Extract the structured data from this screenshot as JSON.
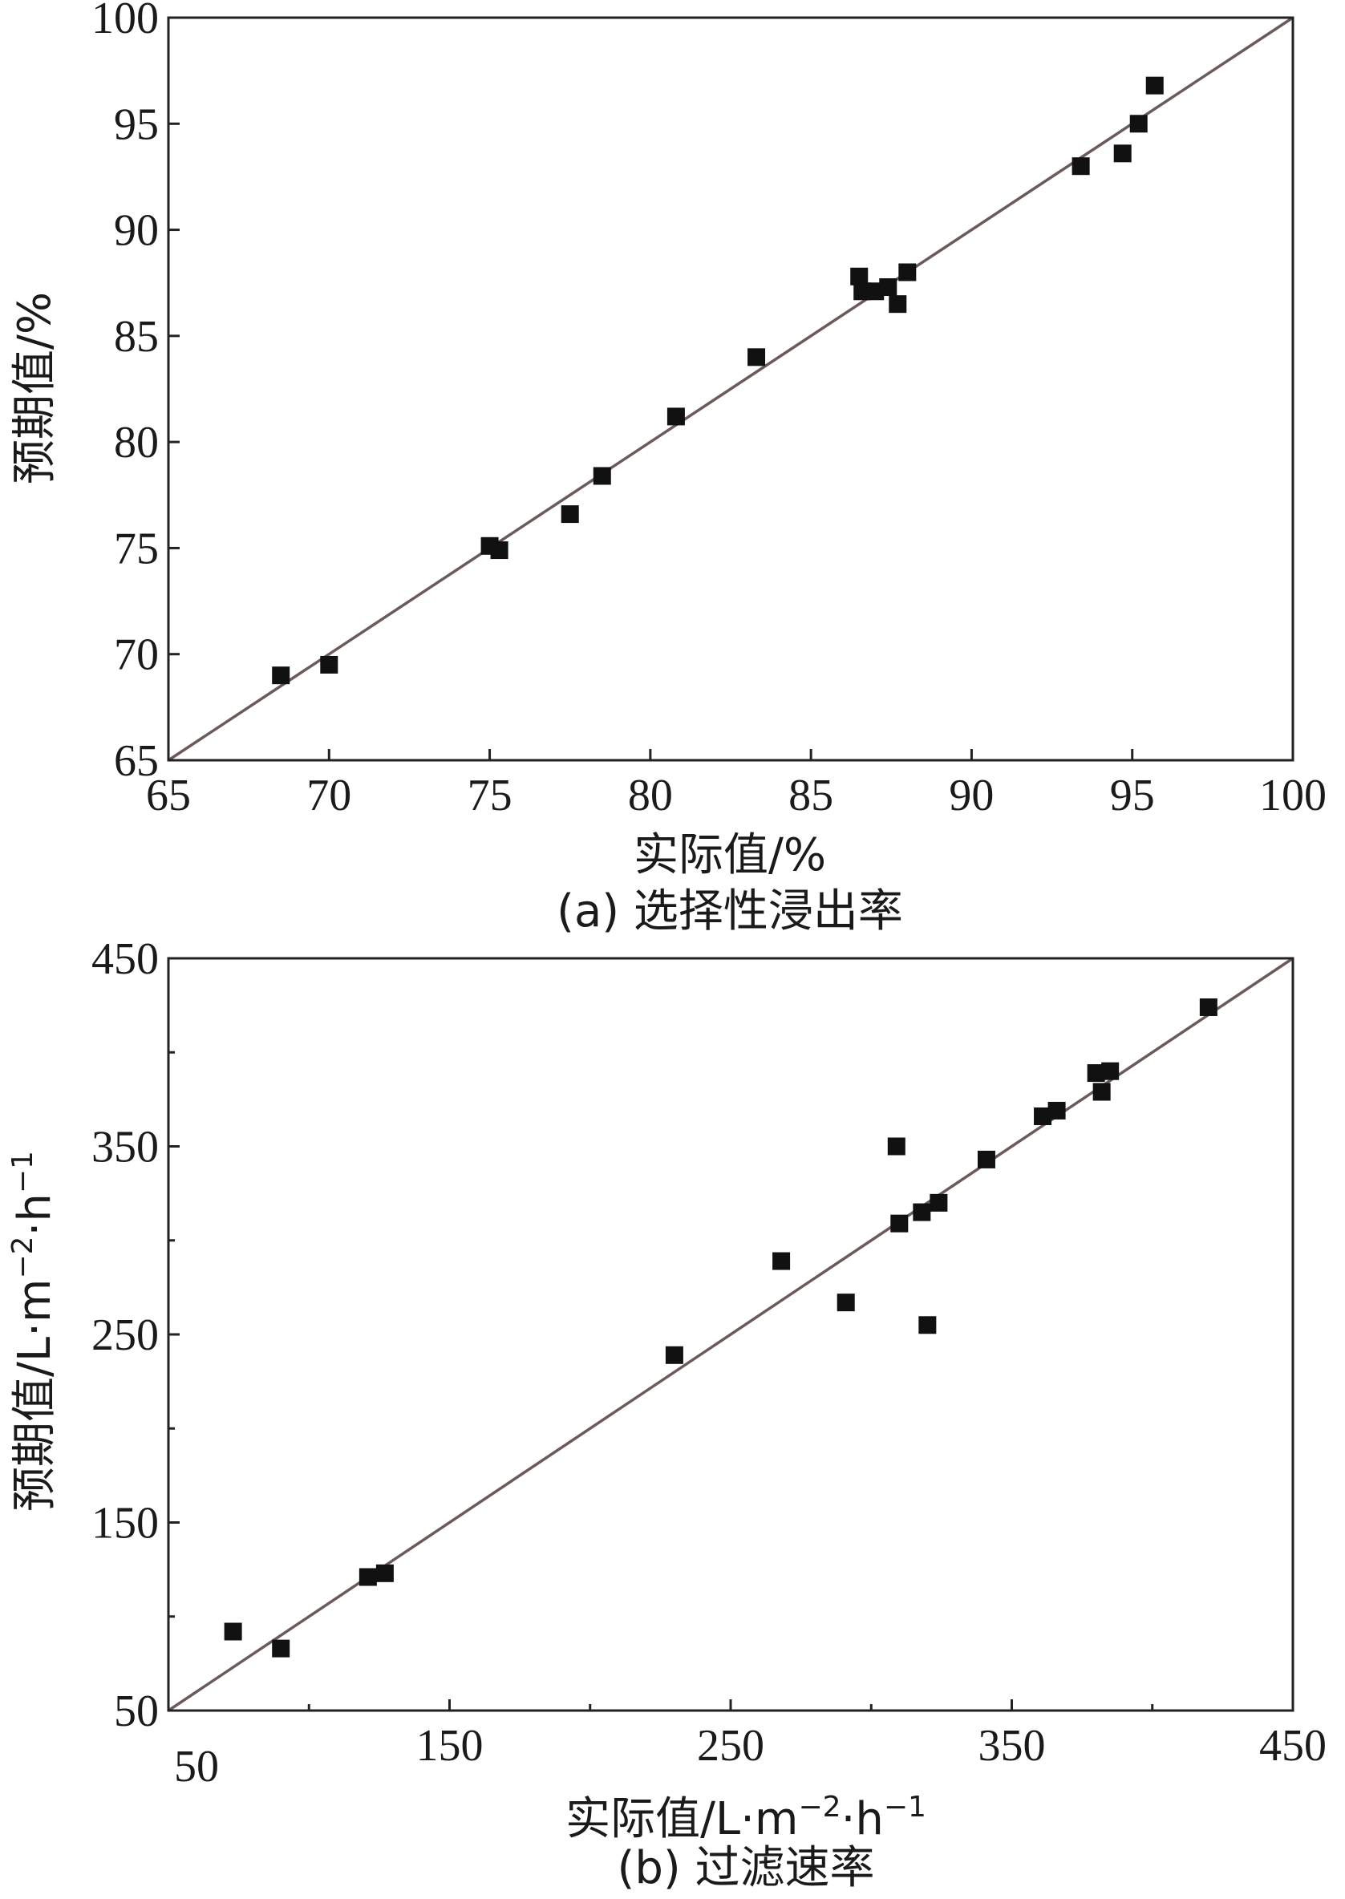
{
  "chart_data": [
    {
      "type": "scatter",
      "id": "a",
      "caption": "(a) 选择性浸出率",
      "xlabel": "实际值/%",
      "ylabel": "预期值/%",
      "xlim": [
        65,
        100
      ],
      "ylim": [
        65,
        100
      ],
      "xticks": [
        "65",
        "70",
        "75",
        "80",
        "85",
        "90",
        "95",
        "100"
      ],
      "yticks": [
        "65",
        "70",
        "75",
        "80",
        "85",
        "90",
        "95",
        "100"
      ],
      "reference_line": "y=x",
      "points": [
        {
          "x": 68.5,
          "y": 69.0
        },
        {
          "x": 70.0,
          "y": 69.5
        },
        {
          "x": 75.0,
          "y": 75.1
        },
        {
          "x": 75.3,
          "y": 74.9
        },
        {
          "x": 77.5,
          "y": 76.6
        },
        {
          "x": 78.5,
          "y": 78.4
        },
        {
          "x": 80.8,
          "y": 81.2
        },
        {
          "x": 83.3,
          "y": 84.0
        },
        {
          "x": 86.5,
          "y": 87.8
        },
        {
          "x": 86.6,
          "y": 87.1
        },
        {
          "x": 87.0,
          "y": 87.1
        },
        {
          "x": 87.4,
          "y": 87.3
        },
        {
          "x": 87.7,
          "y": 86.5
        },
        {
          "x": 88.0,
          "y": 88.0
        },
        {
          "x": 93.4,
          "y": 93.0
        },
        {
          "x": 94.7,
          "y": 93.6
        },
        {
          "x": 95.2,
          "y": 95.0
        },
        {
          "x": 95.7,
          "y": 96.8
        }
      ]
    },
    {
      "type": "scatter",
      "id": "b",
      "caption": "(b) 过滤速率",
      "xlabel_parts": [
        "实际值/L·m",
        "−2",
        "·h",
        "−1"
      ],
      "ylabel_parts": [
        "预期值/L·m",
        "−2",
        "·h",
        "−1"
      ],
      "xlim": [
        50,
        450
      ],
      "ylim": [
        50,
        450
      ],
      "xticks": [
        "50",
        "150",
        "250",
        "350",
        "450"
      ],
      "yticks": [
        "50",
        "150",
        "250",
        "350",
        "450"
      ],
      "reference_line": "y=x",
      "points": [
        {
          "x": 73,
          "y": 92
        },
        {
          "x": 90,
          "y": 83
        },
        {
          "x": 121,
          "y": 121
        },
        {
          "x": 127,
          "y": 123
        },
        {
          "x": 230,
          "y": 239
        },
        {
          "x": 268,
          "y": 289
        },
        {
          "x": 291,
          "y": 267
        },
        {
          "x": 309,
          "y": 350
        },
        {
          "x": 310,
          "y": 309
        },
        {
          "x": 318,
          "y": 315
        },
        {
          "x": 320,
          "y": 255
        },
        {
          "x": 324,
          "y": 320
        },
        {
          "x": 341,
          "y": 343
        },
        {
          "x": 361,
          "y": 366
        },
        {
          "x": 366,
          "y": 369
        },
        {
          "x": 380,
          "y": 389
        },
        {
          "x": 382,
          "y": 379
        },
        {
          "x": 385,
          "y": 390
        },
        {
          "x": 420,
          "y": 424
        }
      ]
    }
  ]
}
